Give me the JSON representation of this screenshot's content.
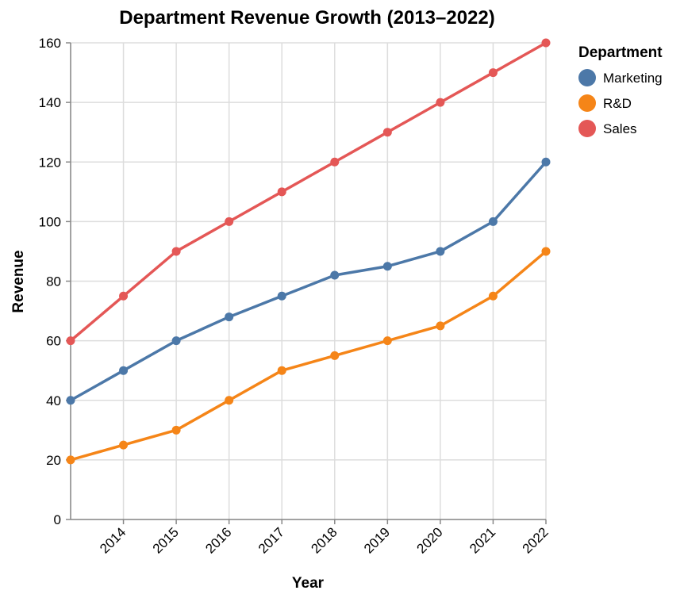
{
  "chart_data": {
    "type": "line",
    "title": "Department Revenue Growth (2013–2022)",
    "xlabel": "Year",
    "ylabel": "Revenue",
    "x": [
      2013,
      2014,
      2015,
      2016,
      2017,
      2018,
      2019,
      2020,
      2021,
      2022
    ],
    "x_tick_labels": [
      "2014",
      "2015",
      "2016",
      "2017",
      "2018",
      "2019",
      "2020",
      "2021",
      "2022"
    ],
    "y_ticks": [
      0,
      20,
      40,
      60,
      80,
      100,
      120,
      140,
      160
    ],
    "ylim": [
      0,
      160
    ],
    "grid": true,
    "legend": {
      "title": "Department",
      "position": "right"
    },
    "series": [
      {
        "name": "Marketing",
        "color": "#4c78a8",
        "values": [
          40,
          50,
          60,
          68,
          75,
          82,
          85,
          90,
          100,
          120
        ]
      },
      {
        "name": "R&D",
        "color": "#f58518",
        "values": [
          20,
          25,
          30,
          40,
          50,
          55,
          60,
          65,
          75,
          90
        ]
      },
      {
        "name": "Sales",
        "color": "#e45756",
        "values": [
          60,
          75,
          90,
          100,
          110,
          120,
          130,
          140,
          150,
          160
        ]
      }
    ]
  }
}
